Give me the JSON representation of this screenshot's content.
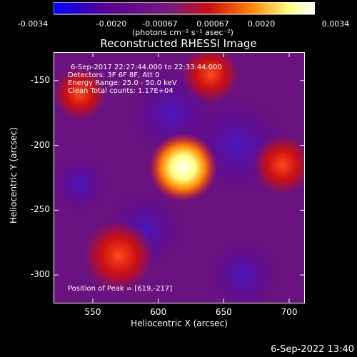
{
  "colorbar": {
    "ticks": [
      "-0.0034",
      "-0.0020",
      "-0.00067",
      "0.00067",
      "0.0020",
      "0.0034"
    ],
    "tick_values": [
      -0.0034,
      -0.002,
      -0.00067,
      0.00067,
      0.002,
      0.0034
    ],
    "units": "(photons cm⁻² s⁻¹ asec⁻²)",
    "range": [
      -0.0034,
      0.0034
    ],
    "colors": [
      "#0000ff",
      "#5a0090",
      "#7a1a80",
      "#cc1010",
      "#ff8000",
      "#ffff80",
      "#ffffff"
    ]
  },
  "annotations": {
    "time_range": "6-Sep-2017 22:27:44.000 to 22:33:44.000",
    "detectors": "Detectors: 3F 6F 8F, Att 0",
    "energy": "Energy Range: 25.0 - 50.0 keV",
    "clean": "Clean    Total counts: 1.17E+04",
    "peak": "Position of Peak = [619,-217]"
  },
  "datestamp": "6-Sep-2022 13:40",
  "chart_data": {
    "type": "heatmap",
    "title": "Reconstructed RHESSI Image",
    "xlabel": "Heliocentric X (arcsec)",
    "ylabel": "Heliocentric Y (arcsec)",
    "xlim": [
      520,
      712
    ],
    "ylim": [
      -322,
      -128
    ],
    "xticks": [
      550,
      600,
      650,
      700
    ],
    "yticks": [
      -300,
      -250,
      -200,
      -150
    ],
    "peak": {
      "x": 619,
      "y": -217,
      "value": 0.0034
    },
    "secondary_sources": [
      {
        "x": 570,
        "y": -285,
        "value": 0.0018
      },
      {
        "x": 695,
        "y": -215,
        "value": 0.0012
      },
      {
        "x": 640,
        "y": -145,
        "value": 0.0011
      },
      {
        "x": 540,
        "y": -160,
        "value": 0.0009
      }
    ]
  }
}
